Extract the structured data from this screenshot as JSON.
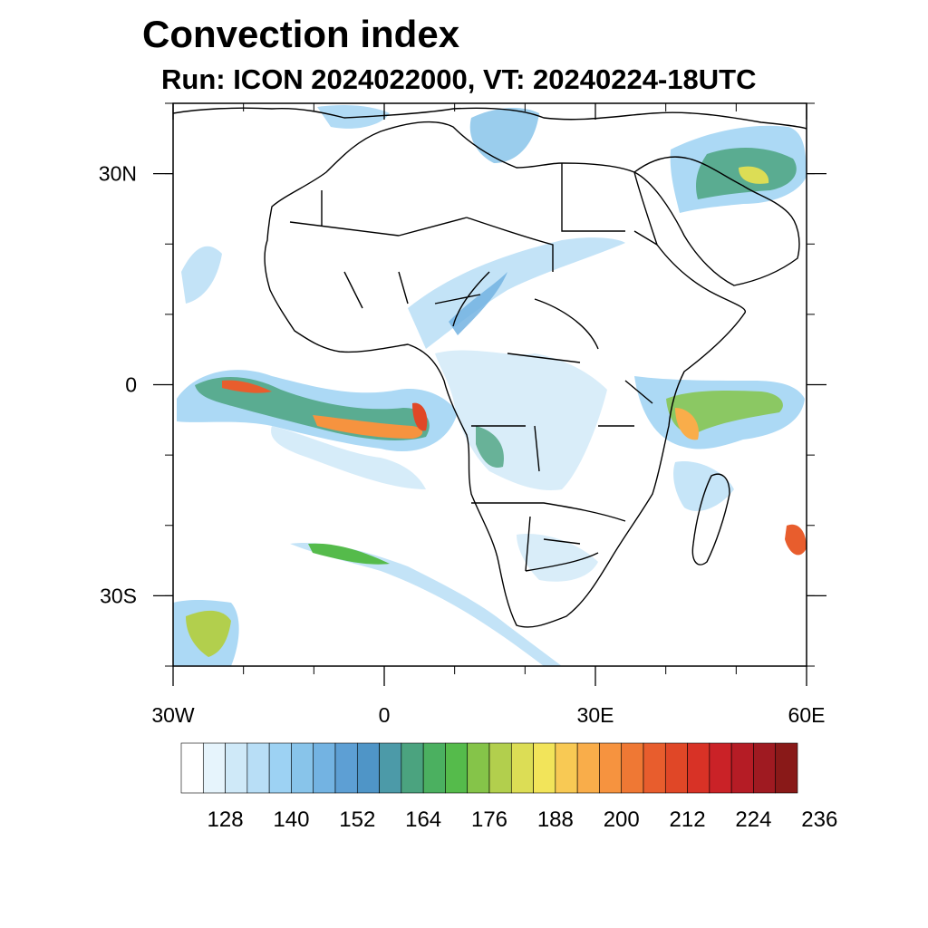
{
  "header": {
    "title": "Convection index",
    "subtitle": "Run: ICON 2024022000,  VT: 20240224-18UTC"
  },
  "map": {
    "lon_range": [
      -30,
      60
    ],
    "lat_range": [
      -40,
      40
    ],
    "background": "#ffffff",
    "coastline_color": "#000000",
    "x_ticks": [
      {
        "lon": -30,
        "label": "30W"
      },
      {
        "lon": 0,
        "label": "0"
      },
      {
        "lon": 30,
        "label": "30E"
      },
      {
        "lon": 60,
        "label": "60E"
      }
    ],
    "y_ticks": [
      {
        "lat": 30,
        "label": "30N"
      },
      {
        "lat": 0,
        "label": "0"
      },
      {
        "lat": -30,
        "label": "30S"
      }
    ],
    "minor_lon_step": 10,
    "minor_lat_step": 10
  },
  "colorbar": {
    "colors": [
      "#ffffff",
      "#e6f4fc",
      "#cfe9f8",
      "#b8def6",
      "#9dd2f3",
      "#88c4ea",
      "#73b3e2",
      "#5d9fd4",
      "#4f95c7",
      "#4c9aa8",
      "#4ba37f",
      "#4bb060",
      "#55bb4b",
      "#85c449",
      "#b2cf4d",
      "#dcdd55",
      "#f2e45a",
      "#f8c954",
      "#f9ad4a",
      "#f6933f",
      "#ef7834",
      "#e85d2d",
      "#e04727",
      "#d83226",
      "#ca2227",
      "#b51c25",
      "#9f1a21",
      "#891918"
    ],
    "labels": [
      "128",
      "140",
      "152",
      "164",
      "176",
      "188",
      "200",
      "212",
      "224",
      "236"
    ],
    "label_start_index": 2,
    "label_step": 3
  }
}
